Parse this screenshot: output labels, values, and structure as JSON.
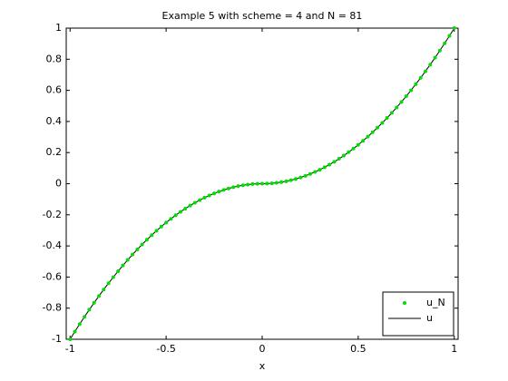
{
  "chart_data": {
    "type": "line",
    "title": "Example 5 with scheme = 4 and N = 81",
    "x_label": "x",
    "x": [
      -1,
      -0.975,
      -0.95,
      -0.925,
      -0.9,
      -0.875,
      -0.85,
      -0.825,
      -0.8,
      -0.775,
      -0.75,
      -0.725,
      -0.7,
      -0.675,
      -0.65,
      -0.625,
      -0.6,
      -0.575,
      -0.55,
      -0.525,
      -0.5,
      -0.475,
      -0.45,
      -0.425,
      -0.4,
      -0.375,
      -0.35,
      -0.325,
      -0.3,
      -0.275,
      -0.25,
      -0.225,
      -0.2,
      -0.175,
      -0.15,
      -0.125,
      -0.1,
      -0.075,
      -0.05,
      -0.025,
      0,
      0.025,
      0.05,
      0.075,
      0.1,
      0.125,
      0.15,
      0.175,
      0.2,
      0.225,
      0.25,
      0.275,
      0.3,
      0.325,
      0.35,
      0.375,
      0.4,
      0.425,
      0.45,
      0.475,
      0.5,
      0.525,
      0.55,
      0.575,
      0.6,
      0.625,
      0.65,
      0.675,
      0.7,
      0.725,
      0.75,
      0.775,
      0.8,
      0.825,
      0.85,
      0.875,
      0.9,
      0.925,
      0.95,
      0.975,
      1
    ],
    "series": [
      {
        "name": "u_N",
        "color": "#00dd00",
        "marker": "dot",
        "values": [
          -1,
          -0.9506,
          -0.9025,
          -0.8556,
          -0.81,
          -0.7656,
          -0.7225,
          -0.6806,
          -0.64,
          -0.6006,
          -0.5625,
          -0.5256,
          -0.49,
          -0.4556,
          -0.4225,
          -0.3906,
          -0.36,
          -0.3306,
          -0.3025,
          -0.2756,
          -0.25,
          -0.2256,
          -0.2025,
          -0.1806,
          -0.16,
          -0.1406,
          -0.1225,
          -0.1056,
          -0.09,
          -0.0756,
          -0.0625,
          -0.0506,
          -0.04,
          -0.0306,
          -0.0225,
          -0.0156,
          -0.01,
          -0.0056,
          -0.0025,
          -0.0006,
          0,
          0.0006,
          0.0025,
          0.0056,
          0.01,
          0.0156,
          0.0225,
          0.0306,
          0.04,
          0.0506,
          0.0625,
          0.0756,
          0.09,
          0.1056,
          0.1225,
          0.1406,
          0.16,
          0.1806,
          0.2025,
          0.2256,
          0.25,
          0.2756,
          0.3025,
          0.3306,
          0.36,
          0.3906,
          0.4225,
          0.4556,
          0.49,
          0.5256,
          0.5625,
          0.6006,
          0.64,
          0.6806,
          0.7225,
          0.7656,
          0.81,
          0.8556,
          0.9025,
          0.9506,
          1
        ]
      },
      {
        "name": "u",
        "color": "#000000",
        "marker": "line",
        "values": [
          -1,
          -0.9506,
          -0.9025,
          -0.8556,
          -0.81,
          -0.7656,
          -0.7225,
          -0.6806,
          -0.64,
          -0.6006,
          -0.5625,
          -0.5256,
          -0.49,
          -0.4556,
          -0.4225,
          -0.3906,
          -0.36,
          -0.3306,
          -0.3025,
          -0.2756,
          -0.25,
          -0.2256,
          -0.2025,
          -0.1806,
          -0.16,
          -0.1406,
          -0.1225,
          -0.1056,
          -0.09,
          -0.0756,
          -0.0625,
          -0.0506,
          -0.04,
          -0.0306,
          -0.0225,
          -0.0156,
          -0.01,
          -0.0056,
          -0.0025,
          -0.0006,
          0,
          0.0006,
          0.0025,
          0.0056,
          0.01,
          0.0156,
          0.0225,
          0.0306,
          0.04,
          0.0506,
          0.0625,
          0.0756,
          0.09,
          0.1056,
          0.1225,
          0.1406,
          0.16,
          0.1806,
          0.2025,
          0.2256,
          0.25,
          0.2756,
          0.3025,
          0.3306,
          0.36,
          0.3906,
          0.4225,
          0.4556,
          0.49,
          0.5256,
          0.5625,
          0.6006,
          0.64,
          0.6806,
          0.7225,
          0.7656,
          0.81,
          0.8556,
          0.9025,
          0.9506,
          1
        ]
      }
    ],
    "xlim": [
      -1.02,
      1.02
    ],
    "xticks": [
      -1,
      -0.5,
      0,
      0.5,
      1
    ],
    "ylim": [
      -1,
      1
    ],
    "yticks": [
      -1,
      -0.8,
      -0.6,
      -0.4,
      -0.2,
      0,
      0.2,
      0.4,
      0.6,
      0.8,
      1
    ],
    "grid": false,
    "legend_loc": "southeast"
  }
}
